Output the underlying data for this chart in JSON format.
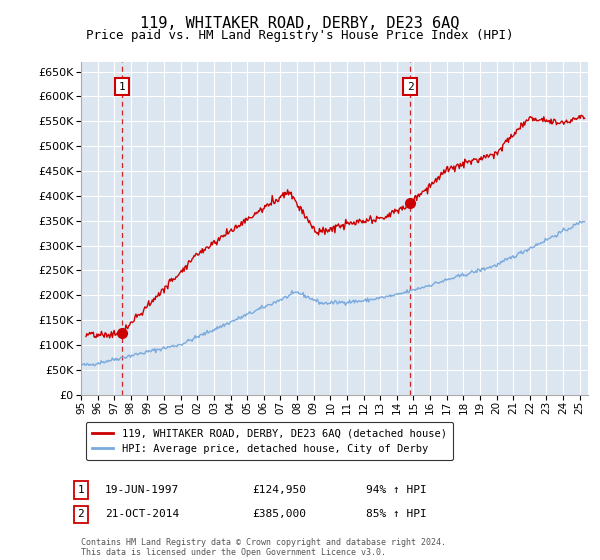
{
  "title": "119, WHITAKER ROAD, DERBY, DE23 6AQ",
  "subtitle": "Price paid vs. HM Land Registry's House Price Index (HPI)",
  "sale1_date": 1997.47,
  "sale1_price": 124950,
  "sale1_label": "1",
  "sale2_date": 2014.8,
  "sale2_price": 385000,
  "sale2_label": "2",
  "ylim_min": 0,
  "ylim_max": 670000,
  "xlim_min": 1995.0,
  "xlim_max": 2025.5,
  "yticks": [
    0,
    50000,
    100000,
    150000,
    200000,
    250000,
    300000,
    350000,
    400000,
    450000,
    500000,
    550000,
    600000,
    650000
  ],
  "plot_bg_color": "#dce6f1",
  "red_line_color": "#cc0000",
  "blue_line_color": "#7aaadd",
  "grid_color": "#ffffff",
  "legend_label_red": "119, WHITAKER ROAD, DERBY, DE23 6AQ (detached house)",
  "legend_label_blue": "HPI: Average price, detached house, City of Derby",
  "annot1_date": "19-JUN-1997",
  "annot1_price": "£124,950",
  "annot1_hpi": "94% ↑ HPI",
  "annot2_date": "21-OCT-2014",
  "annot2_price": "£385,000",
  "annot2_hpi": "85% ↑ HPI",
  "footer": "Contains HM Land Registry data © Crown copyright and database right 2024.\nThis data is licensed under the Open Government Licence v3.0."
}
